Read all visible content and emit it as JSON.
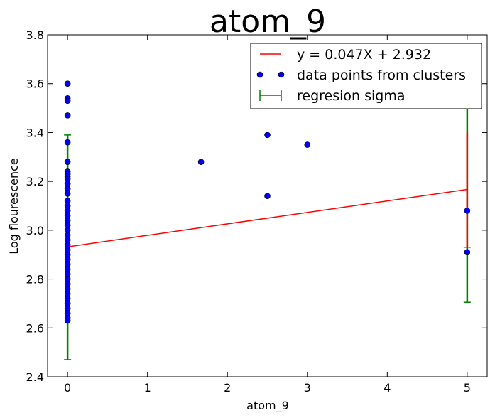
{
  "chart_data": {
    "type": "scatter",
    "title": "atom_9",
    "xlabel": "atom_9",
    "ylabel": "Log flourescence",
    "xlim": [
      -0.25,
      5.25
    ],
    "ylim": [
      2.4,
      3.8
    ],
    "xticks": [
      0,
      1,
      2,
      3,
      4,
      5
    ],
    "xtick_labels": [
      "0",
      "1",
      "2",
      "3",
      "4",
      "5"
    ],
    "yticks": [
      2.4,
      2.6,
      2.8,
      3.0,
      3.2,
      3.4,
      3.6,
      3.8
    ],
    "ytick_labels": [
      "2.4",
      "2.6",
      "2.8",
      "3.0",
      "3.2",
      "3.4",
      "3.6",
      "3.8"
    ],
    "grid": false,
    "legend_position": "top-right",
    "series": [
      {
        "name": "data points from clusters",
        "kind": "scatter",
        "color": "#0000ff",
        "points": [
          [
            0,
            3.6
          ],
          [
            0,
            3.54
          ],
          [
            0,
            3.53
          ],
          [
            0,
            3.47
          ],
          [
            0,
            3.36
          ],
          [
            0,
            3.28
          ],
          [
            0,
            3.24
          ],
          [
            0,
            3.23
          ],
          [
            0,
            3.22
          ],
          [
            0,
            3.21
          ],
          [
            0,
            3.19
          ],
          [
            0,
            3.17
          ],
          [
            0,
            3.15
          ],
          [
            0,
            3.12
          ],
          [
            0,
            3.1
          ],
          [
            0,
            3.08
          ],
          [
            0,
            3.06
          ],
          [
            0,
            3.04
          ],
          [
            0,
            3.02
          ],
          [
            0,
            3.0
          ],
          [
            0,
            2.98
          ],
          [
            0,
            2.96
          ],
          [
            0,
            2.94
          ],
          [
            0,
            2.92
          ],
          [
            0,
            2.9
          ],
          [
            0,
            2.88
          ],
          [
            0,
            2.86
          ],
          [
            0,
            2.84
          ],
          [
            0,
            2.82
          ],
          [
            0,
            2.8
          ],
          [
            0,
            2.78
          ],
          [
            0,
            2.76
          ],
          [
            0,
            2.74
          ],
          [
            0,
            2.72
          ],
          [
            0,
            2.7
          ],
          [
            0,
            2.68
          ],
          [
            0,
            2.66
          ],
          [
            0,
            2.64
          ],
          [
            0,
            2.63
          ],
          [
            1.67,
            3.28
          ],
          [
            2.5,
            3.39
          ],
          [
            2.5,
            3.14
          ],
          [
            3.0,
            3.35
          ],
          [
            5.0,
            3.08
          ],
          [
            5.0,
            2.91
          ]
        ]
      },
      {
        "name": "y = 0.047X + 2.932",
        "kind": "line",
        "color": "#ff0000",
        "slope": 0.047,
        "intercept": 2.932,
        "x_range": [
          0,
          5
        ]
      },
      {
        "name": "regresion sigma",
        "kind": "errorbar",
        "color": "#008000",
        "bars": [
          {
            "x": 0,
            "low": 2.47,
            "high": 3.39
          },
          {
            "x": 5,
            "low": 2.705,
            "high": 3.63
          }
        ]
      }
    ],
    "extra_bars": [
      {
        "x": 5,
        "low": 2.93,
        "high": 3.4,
        "color": "#ff0000"
      }
    ]
  }
}
